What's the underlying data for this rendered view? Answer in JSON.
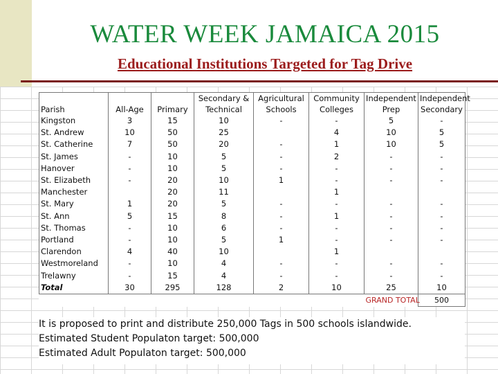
{
  "title": "WATER WEEK JAMAICA 2015",
  "subtitle": "Educational Institutions Targeted for Tag Drive",
  "table": {
    "columns": [
      [
        "",
        "Parish"
      ],
      [
        "",
        "All-Age"
      ],
      [
        "",
        "Primary"
      ],
      [
        "Secondary &",
        "Technical"
      ],
      [
        "Agricultural",
        "Schools"
      ],
      [
        "Community",
        "Colleges"
      ],
      [
        "Independent",
        "Prep"
      ],
      [
        "Independent",
        "Secondary"
      ]
    ],
    "rows": [
      [
        "Kingston",
        "3",
        "15",
        "10",
        "-",
        "-",
        "5",
        "-"
      ],
      [
        "St. Andrew",
        "10",
        "50",
        "25",
        "",
        "4",
        "10",
        "5"
      ],
      [
        "St. Catherine",
        "7",
        "50",
        "20",
        "-",
        "1",
        "10",
        "5"
      ],
      [
        "St. James",
        "-",
        "10",
        "5",
        "-",
        "2",
        "-",
        "-"
      ],
      [
        "Hanover",
        "-",
        "10",
        "5",
        "-",
        "-",
        "-",
        "-"
      ],
      [
        "St. Elizabeth",
        "-",
        "20",
        "10",
        "1",
        "-",
        "-",
        "-"
      ],
      [
        "Manchester",
        "",
        "20",
        "11",
        "",
        "1",
        "",
        ""
      ],
      [
        "St. Mary",
        "1",
        "20",
        "5",
        "-",
        "-",
        "-",
        "-"
      ],
      [
        "St. Ann",
        "5",
        "15",
        "8",
        "-",
        "1",
        "-",
        "-"
      ],
      [
        "St. Thomas",
        "-",
        "10",
        "6",
        "-",
        "-",
        "-",
        "-"
      ],
      [
        "Portland",
        "-",
        "10",
        "5",
        "1",
        "-",
        "-",
        "-"
      ],
      [
        "Clarendon",
        "4",
        "40",
        "10",
        "",
        "1",
        "",
        ""
      ],
      [
        "Westmoreland",
        "-",
        "10",
        "4",
        "-",
        "-",
        "-",
        "-"
      ],
      [
        "Trelawny",
        "-",
        "15",
        "4",
        "-",
        "-",
        "-",
        "-"
      ]
    ],
    "total": [
      "Total",
      "30",
      "295",
      "128",
      "2",
      "10",
      "25",
      "10"
    ],
    "grand_total_label": "GRAND TOTAL",
    "grand_total_value": "500"
  },
  "notes": [
    "It is proposed to print and distribute 250,000 Tags in 500 schools islandwide.",
    "Estimated Student Populaton target: 500,000",
    "Estimated Adult Populaton target: 500,000"
  ],
  "colors": {
    "title": "#1a8a3c",
    "subtitle": "#9b1c1c",
    "grand_total_label": "#b82626",
    "left_bar": "#e8e6c3"
  }
}
